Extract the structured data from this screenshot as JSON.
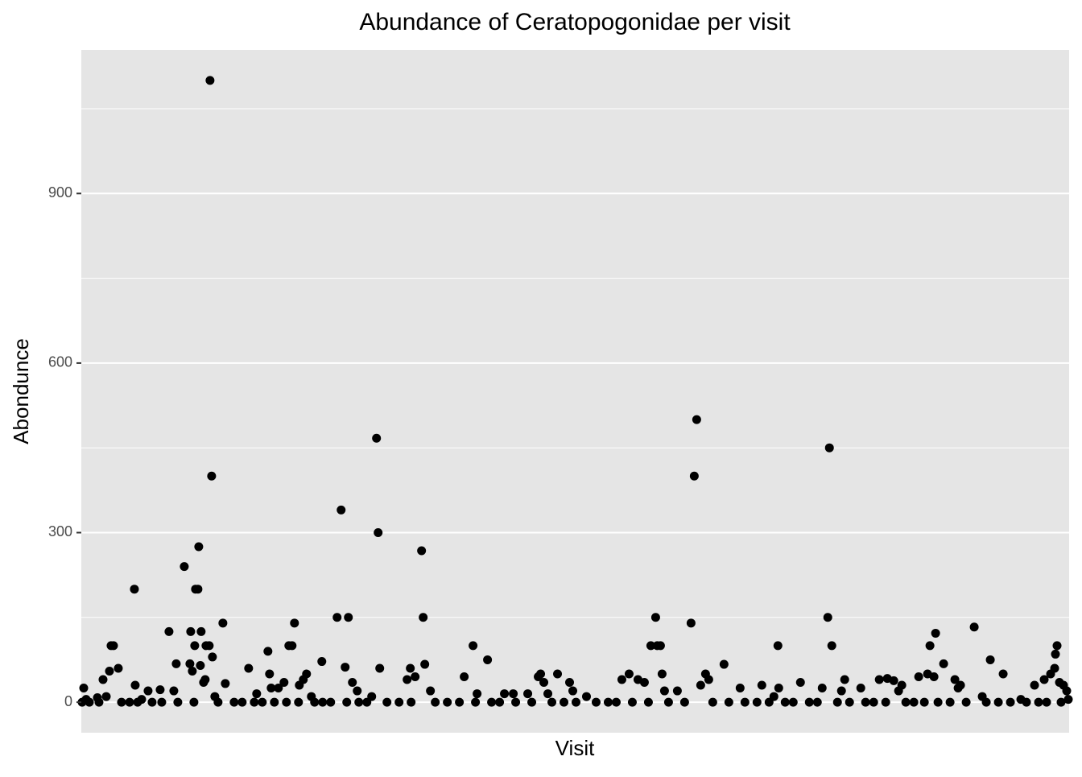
{
  "chart_data": {
    "type": "scatter",
    "title": "Abundance of Ceratopogonidae per visit",
    "x_label": "Visit",
    "y_label": "Abondunce",
    "ylim": [
      -54,
      1154
    ],
    "yticks": [
      0,
      300,
      600,
      900
    ],
    "minor_yticks": [
      150,
      450,
      750,
      1050
    ],
    "xlim": [
      0,
      1228
    ],
    "grid": true,
    "series": [
      {
        "color": "#000000",
        "x": [
          3,
          6,
          20,
          27,
          31,
          35,
          37,
          40,
          46,
          66,
          67,
          75,
          83,
          98,
          109,
          115,
          118,
          128,
          135,
          136,
          138,
          141,
          142,
          145,
          146,
          148,
          149,
          152,
          154,
          155,
          159,
          160,
          162,
          163,
          166,
          176,
          179,
          208,
          218,
          232,
          234,
          236,
          245,
          252,
          258,
          262,
          265,
          271,
          276,
          280,
          286,
          299,
          318,
          323,
          328,
          332,
          337,
          343,
          361,
          367,
          369,
          371,
          405,
          409,
          415,
          423,
          425,
          427,
          434,
          476,
          487,
          492,
          505,
          526,
          537,
          555,
          568,
          571,
          575,
          580,
          592,
          607,
          611,
          628,
          672,
          681,
          692,
          700,
          708,
          714,
          716,
          720,
          722,
          725,
          741,
          758,
          762,
          765,
          770,
          776,
          780,
          799,
          819,
          846,
          861,
          866,
          867,
          894,
          921,
          928,
          930,
          933,
          945,
          949,
          969,
          992,
          1002,
          1010,
          1016,
          1020,
          1041,
          1052,
          1055,
          1060,
          1062,
          1072,
          1086,
          1090,
          1093,
          1110,
          1120,
          1130,
          1146,
          1168,
          1185,
          1197,
          1205,
          1210,
          1211,
          1213,
          1216,
          1221,
          1225,
          1227,
          1,
          10,
          22,
          50,
          60,
          70,
          88,
          100,
          120,
          140,
          170,
          190,
          200,
          215,
          225,
          240,
          255,
          270,
          290,
          300,
          310,
          330,
          345,
          355,
          380,
          395,
          410,
          440,
          455,
          470,
          490,
          510,
          520,
          540,
          560,
          585,
          600,
          615,
          640,
          655,
          665,
          685,
          705,
          730,
          750,
          785,
          805,
          825,
          840,
          855,
          875,
          885,
          905,
          915,
          940,
          955,
          975,
          985,
          1000,
          1025,
          1035,
          1048,
          1065,
          1080,
          1100,
          1125,
          1140,
          1155,
          1175,
          1190,
          1200,
          1218
        ],
        "values": [
          25,
          5,
          8,
          40,
          10,
          55,
          100,
          100,
          60,
          200,
          30,
          5,
          20,
          22,
          125,
          20,
          68,
          240,
          68,
          125,
          55,
          100,
          200,
          200,
          275,
          65,
          125,
          35,
          40,
          100,
          100,
          1100,
          400,
          80,
          10,
          140,
          33,
          60,
          15,
          90,
          50,
          25,
          25,
          35,
          100,
          100,
          140,
          30,
          40,
          50,
          10,
          72,
          150,
          340,
          62,
          150,
          35,
          20,
          10,
          467,
          300,
          60,
          40,
          60,
          45,
          268,
          150,
          67,
          20,
          45,
          100,
          15,
          75,
          15,
          15,
          15,
          45,
          50,
          35,
          15,
          50,
          35,
          20,
          10,
          40,
          50,
          40,
          35,
          100,
          150,
          100,
          100,
          50,
          20,
          20,
          140,
          400,
          500,
          30,
          50,
          40,
          67,
          25,
          30,
          10,
          100,
          25,
          35,
          25,
          150,
          450,
          100,
          20,
          40,
          25,
          40,
          42,
          38,
          20,
          30,
          45,
          50,
          100,
          45,
          122,
          68,
          40,
          25,
          30,
          133,
          10,
          75,
          50,
          5,
          30,
          40,
          50,
          60,
          85,
          100,
          35,
          30,
          20,
          5,
          0,
          0,
          0,
          0,
          0,
          0,
          0,
          0,
          0,
          0,
          0,
          0,
          0,
          0,
          0,
          0,
          0,
          0,
          0,
          0,
          0,
          0,
          0,
          0,
          0,
          0,
          0,
          0,
          0,
          0,
          0,
          0,
          0,
          0,
          0,
          0,
          0,
          0,
          0,
          0,
          0,
          0,
          0,
          0,
          0,
          0,
          0,
          0,
          0,
          0,
          0,
          0,
          0,
          0,
          0,
          0,
          0,
          0,
          0,
          0,
          0,
          0,
          0,
          0,
          0,
          0,
          0,
          0,
          0,
          0,
          0,
          0
        ]
      }
    ]
  }
}
